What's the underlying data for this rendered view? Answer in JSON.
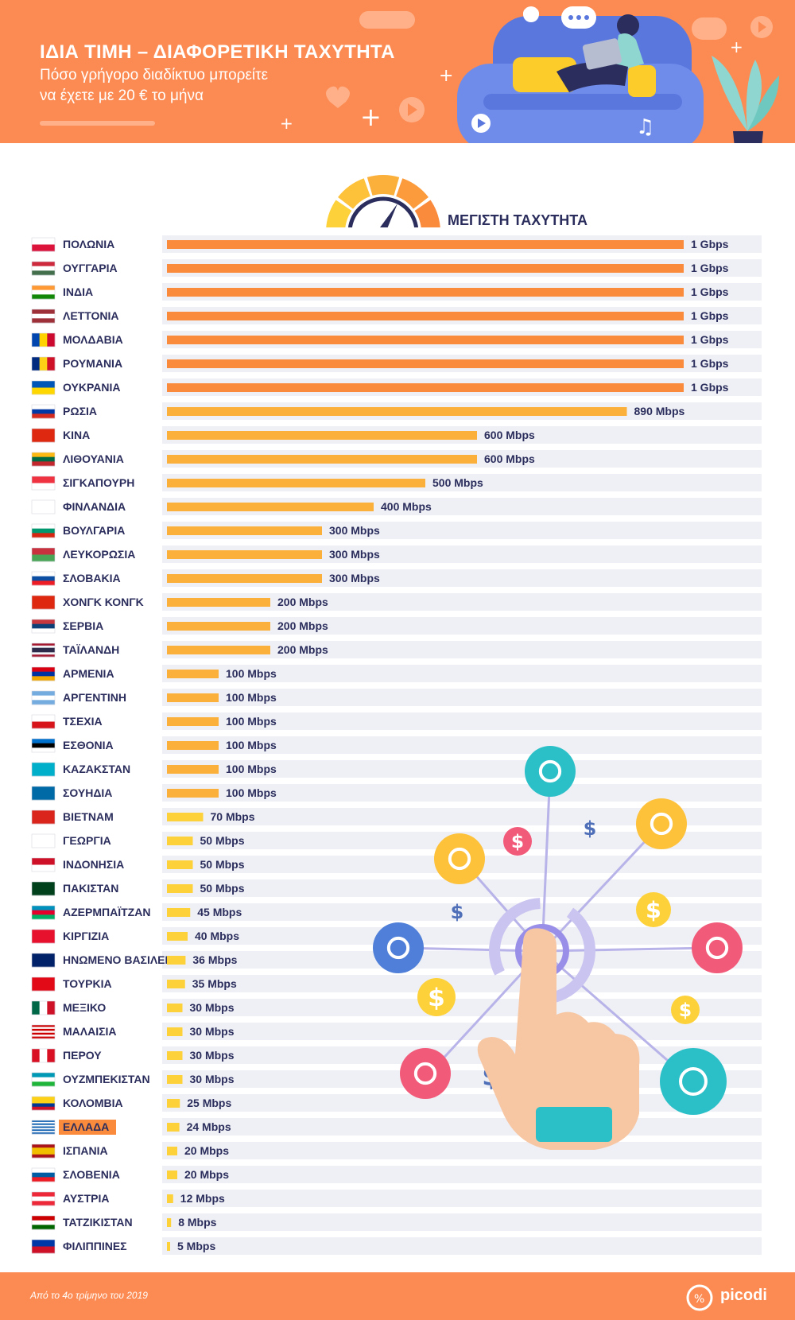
{
  "header": {
    "title": "ΙΔΙΑ ΤΙΜΗ – ΔΙΑΦΟΡΕΤΙΚΗ ΤΑΧΥΤΗΤΑ",
    "subtitle_line1": "Πόσο γρήγορο διαδίκτυο μπορείτε",
    "subtitle_line2": "να έχετε με 20 € το μήνα"
  },
  "footer": {
    "source": "Από το 4ο τρίμηνο του 2019",
    "brand": "picodi"
  },
  "colors": {
    "header_bg": "#fb8b52",
    "bar_high": "#fb8b3c",
    "bar_mid": "#fbb03b",
    "bar_low": "#fdd13a",
    "row_bg": "#eef0f5",
    "highlight": "#fb8b3c",
    "text": "#2b2d5c"
  },
  "chart_data": {
    "type": "bar",
    "orientation": "horizontal",
    "title": "ΜΕΓΙΣΤΗ ΤΑΧΥΤΗΤΑ",
    "unit": "Mbps",
    "xlim": [
      0,
      1000
    ],
    "highlight_category": "ΕΛΛΑΔΑ",
    "categories": [
      "ΠΟΛΩΝΙΑ",
      "ΟΥΓΓΑΡΙΑ",
      "ΙΝΔΙΑ",
      "ΛΕΤΤΟΝΙΑ",
      "ΜΟΛΔΑΒΙΑ",
      "ΡΟΥΜΑΝΙΑ",
      "ΟΥΚΡΑΝΙΑ",
      "ΡΩΣΙΑ",
      "ΚΙΝΑ",
      "ΛΙΘΟΥΑΝΙΑ",
      "ΣΙΓΚΑΠΟΥΡΗ",
      "ΦΙΝΛΑΝΔΙΑ",
      "ΒΟΥΛΓΑΡΙΑ",
      "ΛΕΥΚΟΡΩΣΙΑ",
      "ΣΛΟΒΑΚΙΑ",
      "ΧΟΝΓΚ ΚΟΝΓΚ",
      "ΣΕΡΒΙΑ",
      "ΤΑΪΛΑΝΔΗ",
      "ΑΡΜΕΝΙΑ",
      "ΑΡΓΕΝΤΙΝΗ",
      "ΤΣΕΧΙΑ",
      "ΕΣΘΟΝΙΑ",
      "ΚΑΖΑΚΣΤΑΝ",
      "ΣΟΥΗΔΙΑ",
      "ΒΙΕΤΝΑΜ",
      "ΓΕΩΡΓΙΑ",
      "ΙΝΔΟΝΗΣΙΑ",
      "ΠΑΚΙΣΤΑΝ",
      "ΑΖΕΡΜΠΑΪΤΖΑΝ",
      "ΚΙΡΓΙΖΙΑ",
      "ΗΝΩΜΕΝΟ ΒΑΣΙΛΕΙΟ",
      "ΤΟΥΡΚΙΑ",
      "ΜΕΞΙΚΟ",
      "ΜΑΛΑΙΣΙΑ",
      "ΠΕΡΟΥ",
      "ΟΥΖΜΠΕΚΙΣΤΑΝ",
      "ΚΟΛΟΜΒΙΑ",
      "ΕΛΛΑΔΑ",
      "ΙΣΠΑΝΙΑ",
      "ΣΛΟΒΕΝΙΑ",
      "ΑΥΣΤΡΙΑ",
      "ΤΑΤΖΙΚΙΣΤΑΝ",
      "ΦΙΛΙΠΠΙΝΕΣ"
    ],
    "values": [
      1000,
      1000,
      1000,
      1000,
      1000,
      1000,
      1000,
      890,
      600,
      600,
      500,
      400,
      300,
      300,
      300,
      200,
      200,
      200,
      100,
      100,
      100,
      100,
      100,
      100,
      70,
      50,
      50,
      50,
      45,
      40,
      36,
      35,
      30,
      30,
      30,
      30,
      25,
      24,
      20,
      20,
      12,
      8,
      5
    ],
    "value_labels": [
      "1 Gbps",
      "1 Gbps",
      "1 Gbps",
      "1 Gbps",
      "1 Gbps",
      "1 Gbps",
      "1 Gbps",
      "890 Mbps",
      "600 Mbps",
      "600 Mbps",
      "500 Mbps",
      "400 Mbps",
      "300 Mbps",
      "300 Mbps",
      "300 Mbps",
      "200 Mbps",
      "200 Mbps",
      "200 Mbps",
      "100 Mbps",
      "100 Mbps",
      "100 Mbps",
      "100 Mbps",
      "100 Mbps",
      "100 Mbps",
      "70 Mbps",
      "50 Mbps",
      "50 Mbps",
      "50 Mbps",
      "45 Mbps",
      "40 Mbps",
      "36 Mbps",
      "35 Mbps",
      "30 Mbps",
      "30 Mbps",
      "30 Mbps",
      "30 Mbps",
      "25 Mbps",
      "24 Mbps",
      "20 Mbps",
      "20 Mbps",
      "12 Mbps",
      "8 Mbps",
      "5 Mbps"
    ],
    "flags": [
      [
        [
          "#ffffff",
          "#dc143c"
        ],
        "h"
      ],
      [
        [
          "#cd2a3e",
          "#ffffff",
          "#436f4d"
        ],
        "h"
      ],
      [
        [
          "#ff9933",
          "#ffffff",
          "#138808"
        ],
        "h"
      ],
      [
        [
          "#9e3039",
          "#ffffff",
          "#9e3039"
        ],
        "h"
      ],
      [
        [
          "#0046ae",
          "#ffd200",
          "#cc092f"
        ],
        "v"
      ],
      [
        [
          "#002b7f",
          "#fcd116",
          "#ce1126"
        ],
        "v"
      ],
      [
        [
          "#0057b7",
          "#ffd700"
        ],
        "h"
      ],
      [
        [
          "#ffffff",
          "#0039a6",
          "#d52b1e"
        ],
        "h"
      ],
      [
        [
          "#de2910"
        ],
        "h"
      ],
      [
        [
          "#fdb913",
          "#006a44",
          "#c1272d"
        ],
        "h"
      ],
      [
        [
          "#ef3340",
          "#ffffff"
        ],
        "h"
      ],
      [
        [
          "#ffffff"
        ],
        "h"
      ],
      [
        [
          "#ffffff",
          "#00966e",
          "#d62612"
        ],
        "h"
      ],
      [
        [
          "#c8313e",
          "#4aa657"
        ],
        "h"
      ],
      [
        [
          "#ffffff",
          "#0b4ea2",
          "#ee1c25"
        ],
        "h"
      ],
      [
        [
          "#de2910"
        ],
        "h"
      ],
      [
        [
          "#c6363c",
          "#0c4076",
          "#ffffff"
        ],
        "h"
      ],
      [
        [
          "#a51931",
          "#f4f5f8",
          "#2d2a4a",
          "#2d2a4a",
          "#f4f5f8",
          "#a51931"
        ],
        "h"
      ],
      [
        [
          "#d90012",
          "#0033a0",
          "#f2a800"
        ],
        "h"
      ],
      [
        [
          "#74acdf",
          "#ffffff",
          "#74acdf"
        ],
        "h"
      ],
      [
        [
          "#ffffff",
          "#d7141a"
        ],
        "h"
      ],
      [
        [
          "#0072ce",
          "#000000",
          "#ffffff"
        ],
        "h"
      ],
      [
        [
          "#00afca"
        ],
        "h"
      ],
      [
        [
          "#006aa7"
        ],
        "h"
      ],
      [
        [
          "#da251d"
        ],
        "h"
      ],
      [
        [
          "#ffffff"
        ],
        "h"
      ],
      [
        [
          "#ce1126",
          "#ffffff"
        ],
        "h"
      ],
      [
        [
          "#01411c"
        ],
        "h"
      ],
      [
        [
          "#0092bc",
          "#e4002b",
          "#00af66"
        ],
        "h"
      ],
      [
        [
          "#e8112d"
        ],
        "h"
      ],
      [
        [
          "#012169"
        ],
        "h"
      ],
      [
        [
          "#e30a17"
        ],
        "h"
      ],
      [
        [
          "#006847",
          "#ffffff",
          "#ce1126"
        ],
        "v"
      ],
      [
        [
          "#cc0001",
          "#ffffff",
          "#cc0001",
          "#ffffff",
          "#cc0001",
          "#ffffff",
          "#cc0001"
        ],
        "h"
      ],
      [
        [
          "#d91023",
          "#ffffff",
          "#d91023"
        ],
        "v"
      ],
      [
        [
          "#0099b5",
          "#ffffff",
          "#1eb53a"
        ],
        "h"
      ],
      [
        [
          "#fcd116",
          "#fcd116",
          "#003893",
          "#ce1126"
        ],
        "h"
      ],
      [
        [
          "#0d5eaf",
          "#ffffff",
          "#0d5eaf",
          "#ffffff",
          "#0d5eaf",
          "#ffffff",
          "#0d5eaf",
          "#ffffff",
          "#0d5eaf"
        ],
        "h"
      ],
      [
        [
          "#aa151b",
          "#f1bf00",
          "#f1bf00",
          "#aa151b"
        ],
        "h"
      ],
      [
        [
          "#ffffff",
          "#005da4",
          "#ed1c24"
        ],
        "h"
      ],
      [
        [
          "#ed2939",
          "#ffffff",
          "#ed2939"
        ],
        "h"
      ],
      [
        [
          "#cc0000",
          "#ffffff",
          "#006600"
        ],
        "h"
      ],
      [
        [
          "#0038a8",
          "#ce1126"
        ],
        "h"
      ]
    ]
  }
}
